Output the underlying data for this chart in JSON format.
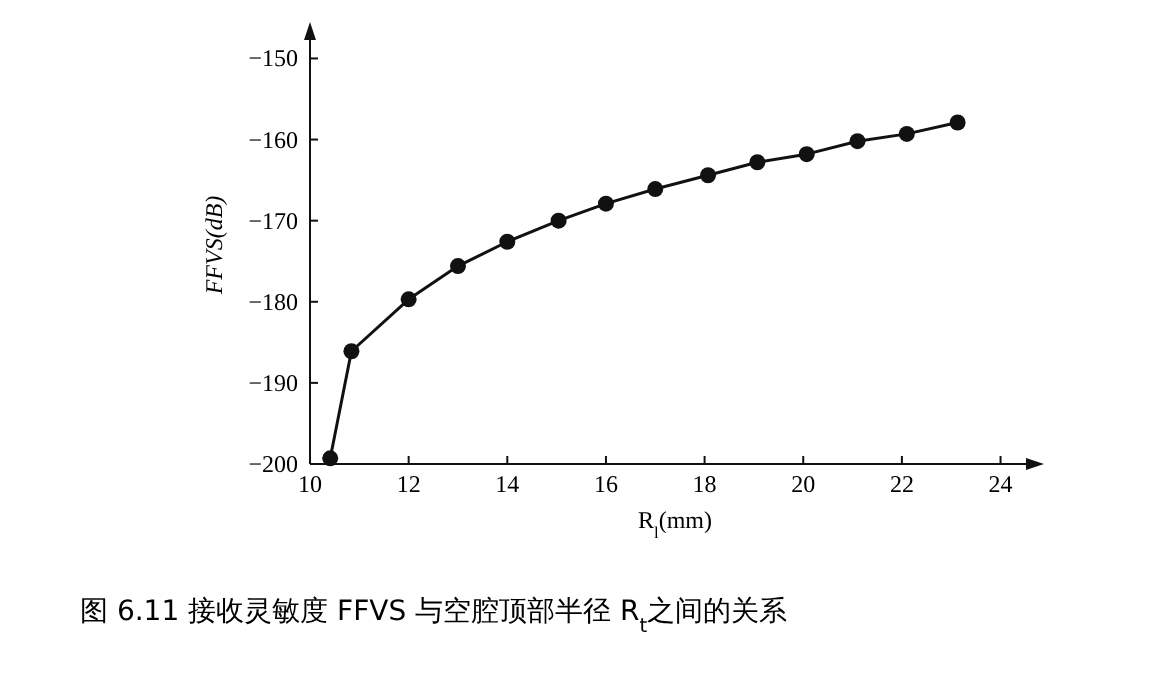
{
  "chart_data": {
    "type": "line",
    "title": "图 6.11 接收灵敏度 FFVS 与空腔顶部半径 R$_{t}$之间的关系",
    "xlabel": "R$_{l}$(mm)",
    "ylabel": "FFVS(dB)",
    "x": [
      10.41,
      10.84,
      12.0,
      13.0,
      14.0,
      15.04,
      16.0,
      17.0,
      18.07,
      19.07,
      20.07,
      21.1,
      22.1,
      23.13
    ],
    "series": [
      {
        "color": "#111111",
        "values": [
          -199.3,
          -186.1,
          -179.7,
          -175.6,
          -172.6,
          -170.0,
          -167.9,
          -166.1,
          -164.4,
          -162.8,
          -161.8,
          -160.2,
          -159.3,
          -157.9
        ]
      }
    ],
    "xlim": [
      10,
      24.8
    ],
    "ylim": [
      -200,
      -146
    ],
    "xticks": [
      10,
      12,
      14,
      16,
      18,
      20,
      22,
      24
    ],
    "yticks": [
      {
        "value": -200,
        "label": "−200"
      },
      {
        "value": -190,
        "label": "−190"
      },
      {
        "value": -180,
        "label": "−180"
      },
      {
        "value": -170,
        "label": "−170"
      },
      {
        "value": -160,
        "label": "−160"
      },
      {
        "value": -150,
        "label": "−150"
      }
    ],
    "marker": "circle",
    "line_style": "solid",
    "grid": false
  }
}
